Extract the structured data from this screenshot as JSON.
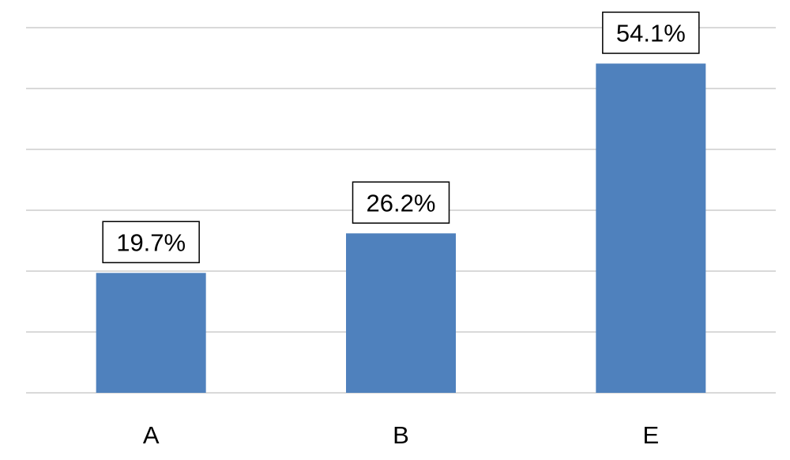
{
  "chart_data": {
    "type": "bar",
    "categories": [
      "A",
      "B",
      "E"
    ],
    "values": [
      19.7,
      26.2,
      54.1
    ],
    "data_labels": [
      "19.7%",
      "26.2%",
      "54.1%"
    ],
    "title": "",
    "xlabel": "",
    "ylabel": "",
    "ylim": [
      0,
      60
    ],
    "y_ticks": [
      0,
      10,
      20,
      30,
      40,
      50,
      60
    ],
    "grid": true,
    "legend": "none",
    "colors": {
      "bar": "#4f81bd",
      "gridline": "#d9d9d9",
      "label_border": "#000000"
    }
  }
}
